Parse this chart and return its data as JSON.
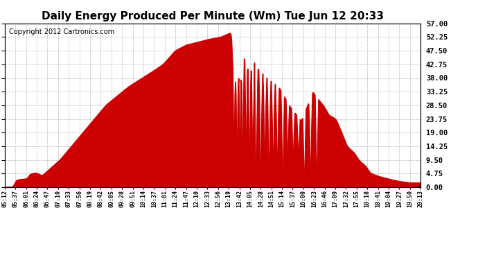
{
  "title": "Daily Energy Produced Per Minute (Wm) Tue Jun 12 20:33",
  "copyright": "Copyright 2012 Cartronics.com",
  "yticks": [
    0.0,
    4.75,
    9.5,
    14.25,
    19.0,
    23.75,
    28.5,
    33.25,
    38.0,
    42.75,
    47.5,
    52.25,
    57.0
  ],
  "ymin": 0.0,
  "ymax": 57.0,
  "line_color": "#cc0000",
  "background_color": "#ffffff",
  "grid_color": "#bbbbbb",
  "title_fontsize": 11,
  "copyright_fontsize": 7,
  "xtick_labels": [
    "05:12",
    "05:37",
    "06:01",
    "06:24",
    "06:47",
    "07:10",
    "07:33",
    "07:56",
    "08:19",
    "08:42",
    "09:05",
    "09:28",
    "09:51",
    "10:14",
    "10:37",
    "11:01",
    "11:24",
    "11:47",
    "12:10",
    "12:33",
    "12:56",
    "13:19",
    "13:42",
    "14:05",
    "14:28",
    "14:51",
    "15:14",
    "15:37",
    "16:00",
    "16:23",
    "16:46",
    "17:09",
    "17:32",
    "17:55",
    "18:18",
    "18:41",
    "19:04",
    "19:27",
    "19:50",
    "20:13"
  ],
  "num_points": 901
}
